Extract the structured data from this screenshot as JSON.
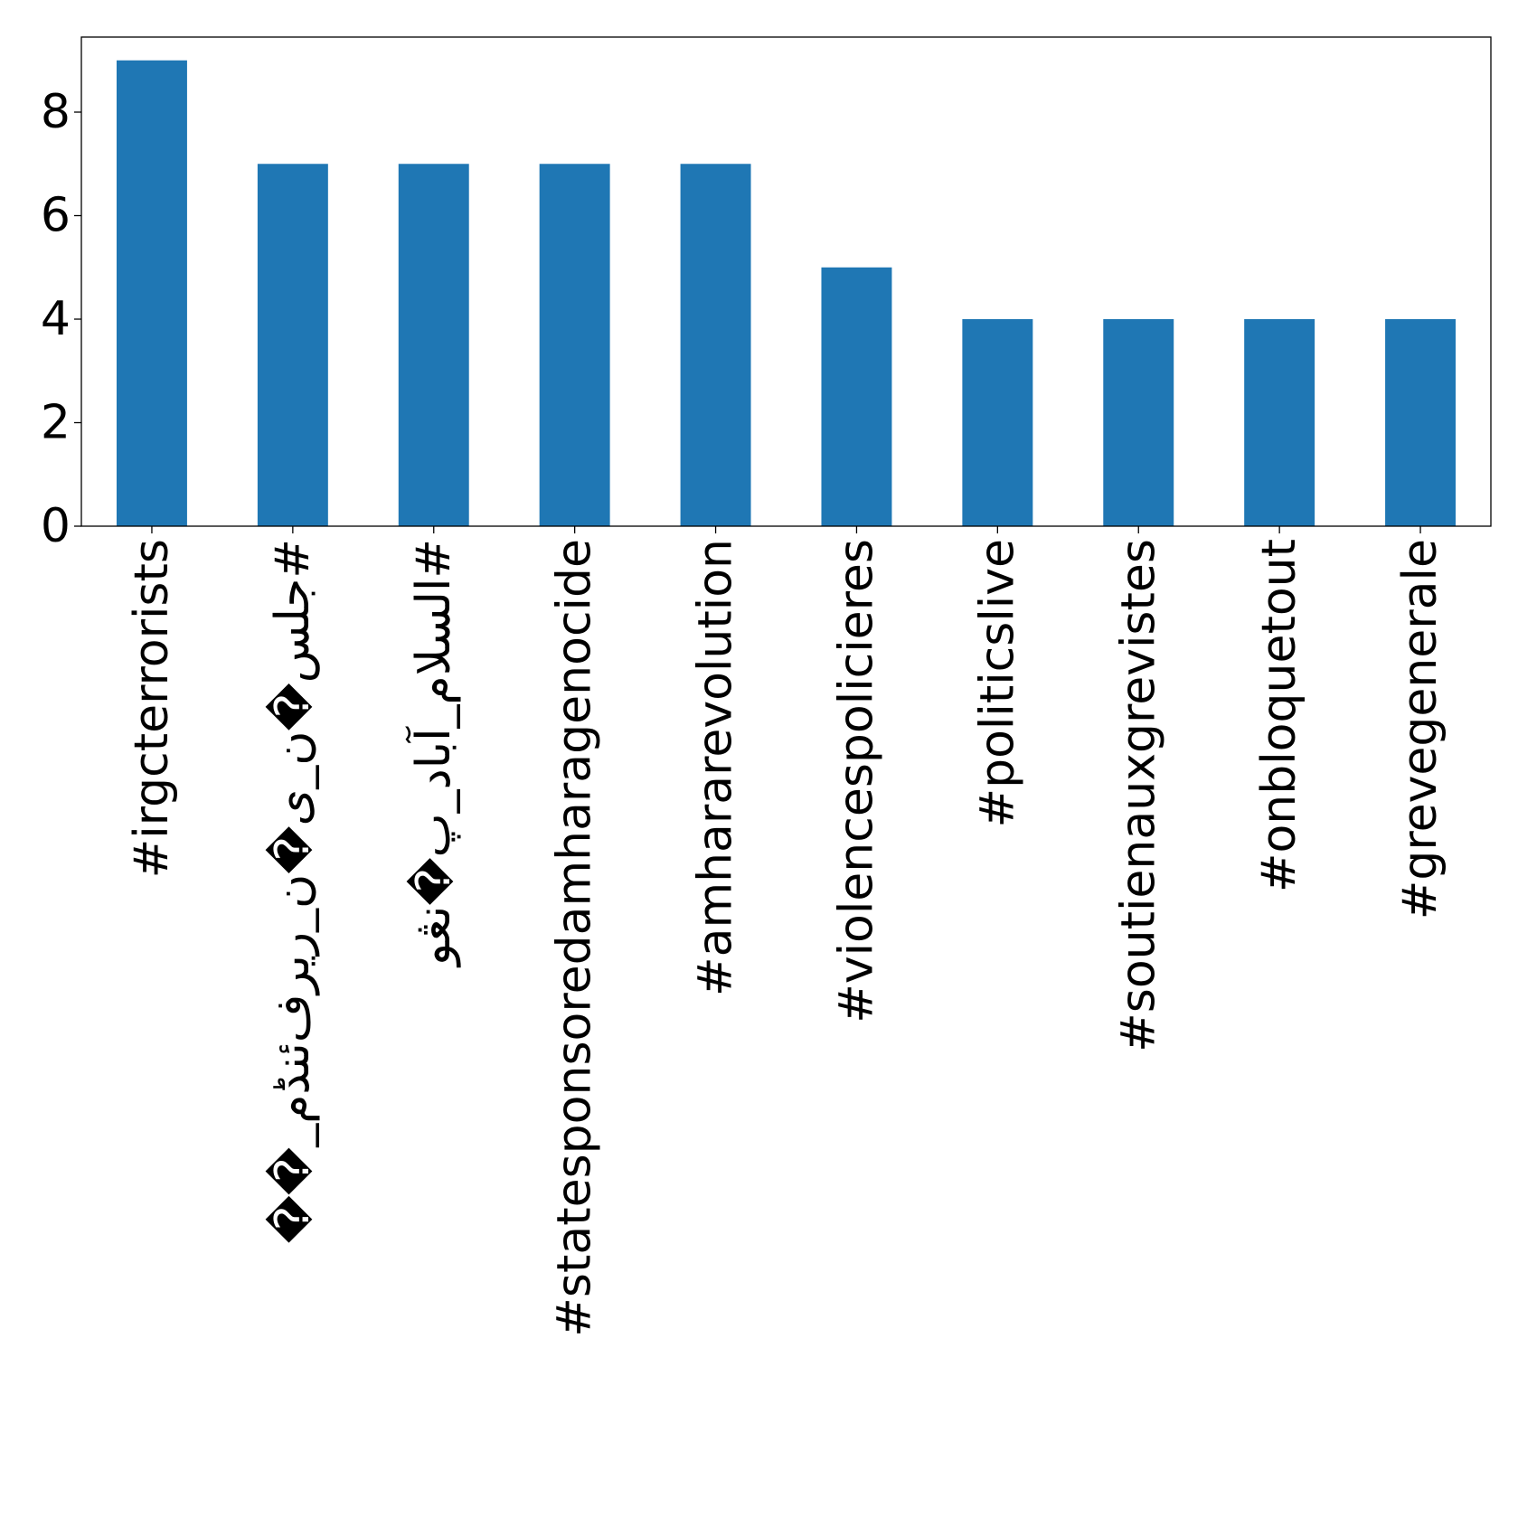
{
  "chart_data": {
    "type": "bar",
    "title": "",
    "xlabel": "",
    "ylabel": "",
    "categories": [
      "#irgcterrorists",
      "#جلس�ن_ی�ن_ریرف‌ئنڈم_��",
      "#السلام_آباد_پ�نڠو",
      "#statesponsoredamharagenocide",
      "#amhararevolution",
      "#violencespolicieres",
      "#politicslive",
      "#soutienauxgrevistes",
      "#onbloquetout",
      "#grevegenerale"
    ],
    "values": [
      9,
      7,
      7,
      7,
      7,
      5,
      4,
      4,
      4,
      4
    ],
    "ylim": [
      0,
      9.45
    ],
    "yticks": [
      "0",
      "2",
      "4",
      "6",
      "8"
    ],
    "bar_color": "#1f77b4",
    "grid": false,
    "legend": "none"
  }
}
